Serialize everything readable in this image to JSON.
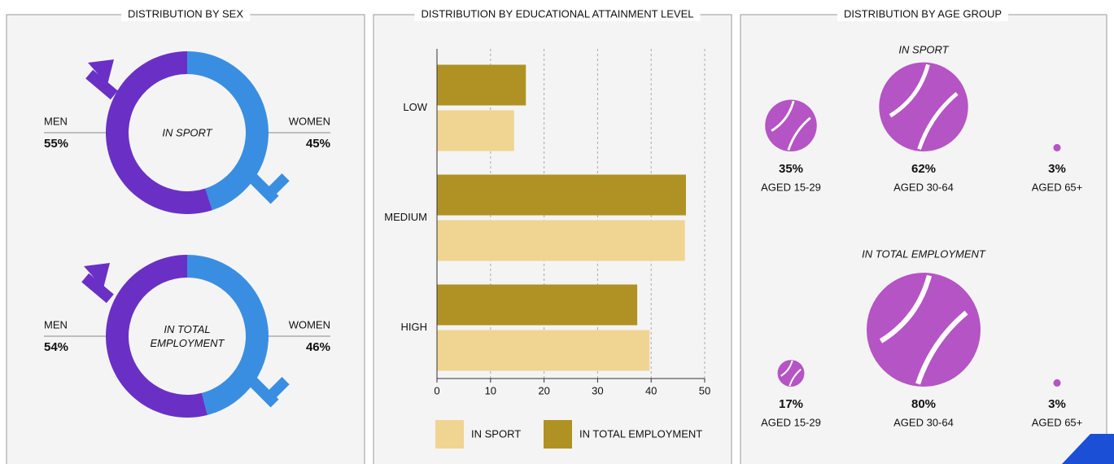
{
  "chart_data": [
    {
      "type": "donut",
      "title": "DISTRIBUTION BY SEX",
      "center_label": "IN SPORT",
      "categories": [
        "MEN",
        "WOMEN"
      ],
      "values": [
        55,
        45
      ],
      "value_labels": [
        "55%",
        "45%"
      ],
      "colors": [
        "#6a30c6",
        "#3a8ee2"
      ]
    },
    {
      "type": "donut",
      "center_label": "IN TOTAL EMPLOYMENT",
      "categories": [
        "MEN",
        "WOMEN"
      ],
      "values": [
        54,
        46
      ],
      "value_labels": [
        "54%",
        "46%"
      ],
      "colors": [
        "#6a30c6",
        "#3a8ee2"
      ]
    },
    {
      "type": "bar",
      "orientation": "horizontal",
      "title": "DISTRIBUTION BY EDUCATIONAL ATTAINMENT LEVEL",
      "categories": [
        "LOW",
        "MEDIUM",
        "HIGH"
      ],
      "series": [
        {
          "name": "IN SPORT",
          "color": "#f0d492",
          "values": [
            14.4,
            46.3,
            39.7
          ]
        },
        {
          "name": "IN TOTAL EMPLOYMENT",
          "color": "#b09224",
          "values": [
            16.6,
            46.5,
            37.4
          ]
        }
      ],
      "xlim": [
        0,
        50
      ],
      "xticks": [
        0,
        10,
        20,
        30,
        40,
        50
      ],
      "grid": true
    },
    {
      "type": "bubble",
      "title": "DISTRIBUTION BY AGE GROUP",
      "categories": [
        "AGED 15-29",
        "AGED 30-64",
        "AGED 65+"
      ],
      "series": [
        {
          "name": "IN SPORT",
          "values": [
            35,
            62,
            3
          ],
          "value_labels": [
            "35%",
            "62%",
            "3%"
          ]
        },
        {
          "name": "IN TOTAL EMPLOYMENT",
          "values": [
            17,
            80,
            3
          ],
          "value_labels": [
            "17%",
            "80%",
            "3%"
          ]
        }
      ],
      "color": "#b554c4"
    }
  ]
}
